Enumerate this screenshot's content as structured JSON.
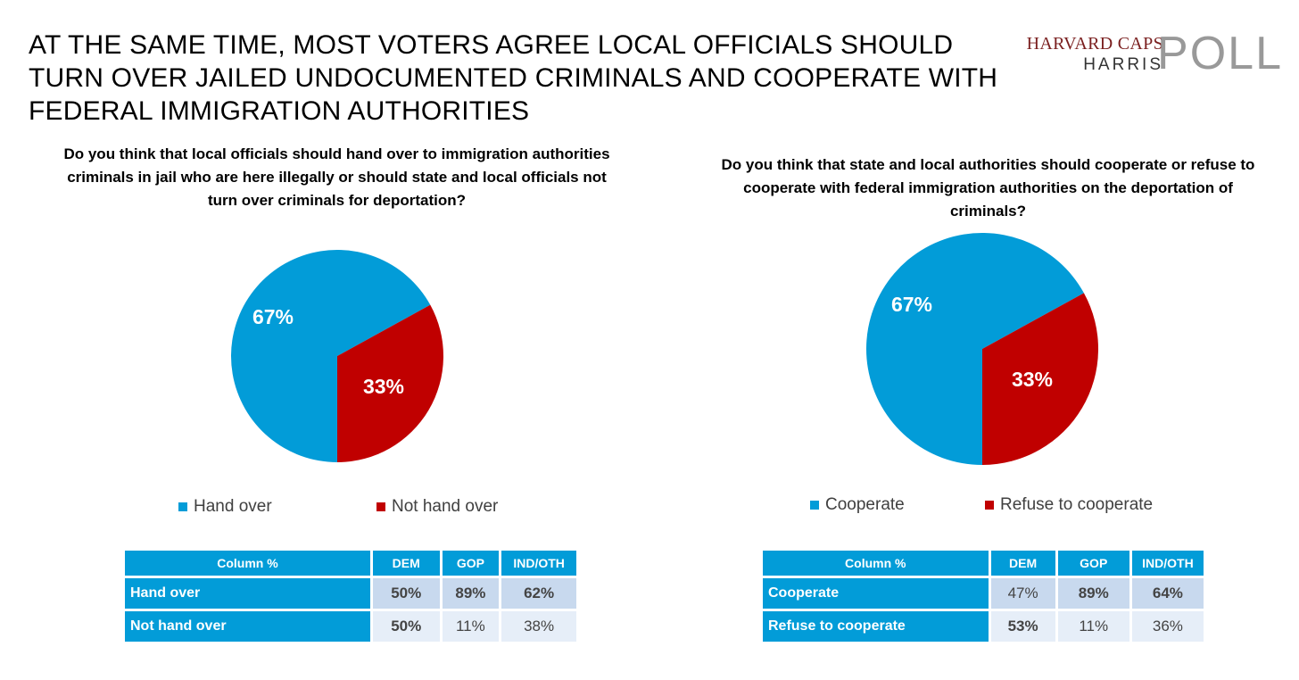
{
  "headline": "AT THE SAME TIME, MOST VOTERS AGREE LOCAL OFFICIALS SHOULD TURN OVER JAILED UNDOCUMENTED CRIMINALS AND COOPERATE WITH FEDERAL IMMIGRATION AUTHORITIES",
  "logo": {
    "line1": "HARVARD CAPS",
    "line2": "HARRIS",
    "line3": "POLL"
  },
  "colors": {
    "blue": "#029cd8",
    "red": "#c00000",
    "row1": "#c8d9ee",
    "row2": "#e6eef8"
  },
  "chart_data": [
    {
      "type": "pie",
      "title": "Do you think that local officials should hand over to immigration authorities criminals in jail who are here illegally or should state and local officials not turn over criminals for deportation?",
      "legend_position": "bottom",
      "slices": [
        {
          "label": "Hand over",
          "value": 67,
          "display": "67%",
          "color": "#029cd8"
        },
        {
          "label": "Not hand over",
          "value": 33,
          "display": "33%",
          "color": "#c00000"
        }
      ],
      "table": {
        "header": [
          "Column %",
          "DEM",
          "GOP",
          "IND/OTH"
        ],
        "rows": [
          {
            "label": "Hand over",
            "values": [
              "50%",
              "89%",
              "62%"
            ],
            "bold": [
              true,
              true,
              true
            ]
          },
          {
            "label": "Not hand over",
            "values": [
              "50%",
              "11%",
              "38%"
            ],
            "bold": [
              true,
              false,
              false
            ]
          }
        ]
      }
    },
    {
      "type": "pie",
      "title": "Do you think that state and local authorities should cooperate or refuse to cooperate with federal immigration authorities on the deportation of criminals?",
      "legend_position": "bottom",
      "slices": [
        {
          "label": "Cooperate",
          "value": 67,
          "display": "67%",
          "color": "#029cd8"
        },
        {
          "label": "Refuse to cooperate",
          "value": 33,
          "display": "33%",
          "color": "#c00000"
        }
      ],
      "table": {
        "header": [
          "Column %",
          "DEM",
          "GOP",
          "IND/OTH"
        ],
        "rows": [
          {
            "label": "Cooperate",
            "values": [
              "47%",
              "89%",
              "64%"
            ],
            "bold": [
              false,
              true,
              true
            ]
          },
          {
            "label": "Refuse to cooperate",
            "values": [
              "53%",
              "11%",
              "36%"
            ],
            "bold": [
              true,
              false,
              false
            ]
          }
        ]
      }
    }
  ]
}
